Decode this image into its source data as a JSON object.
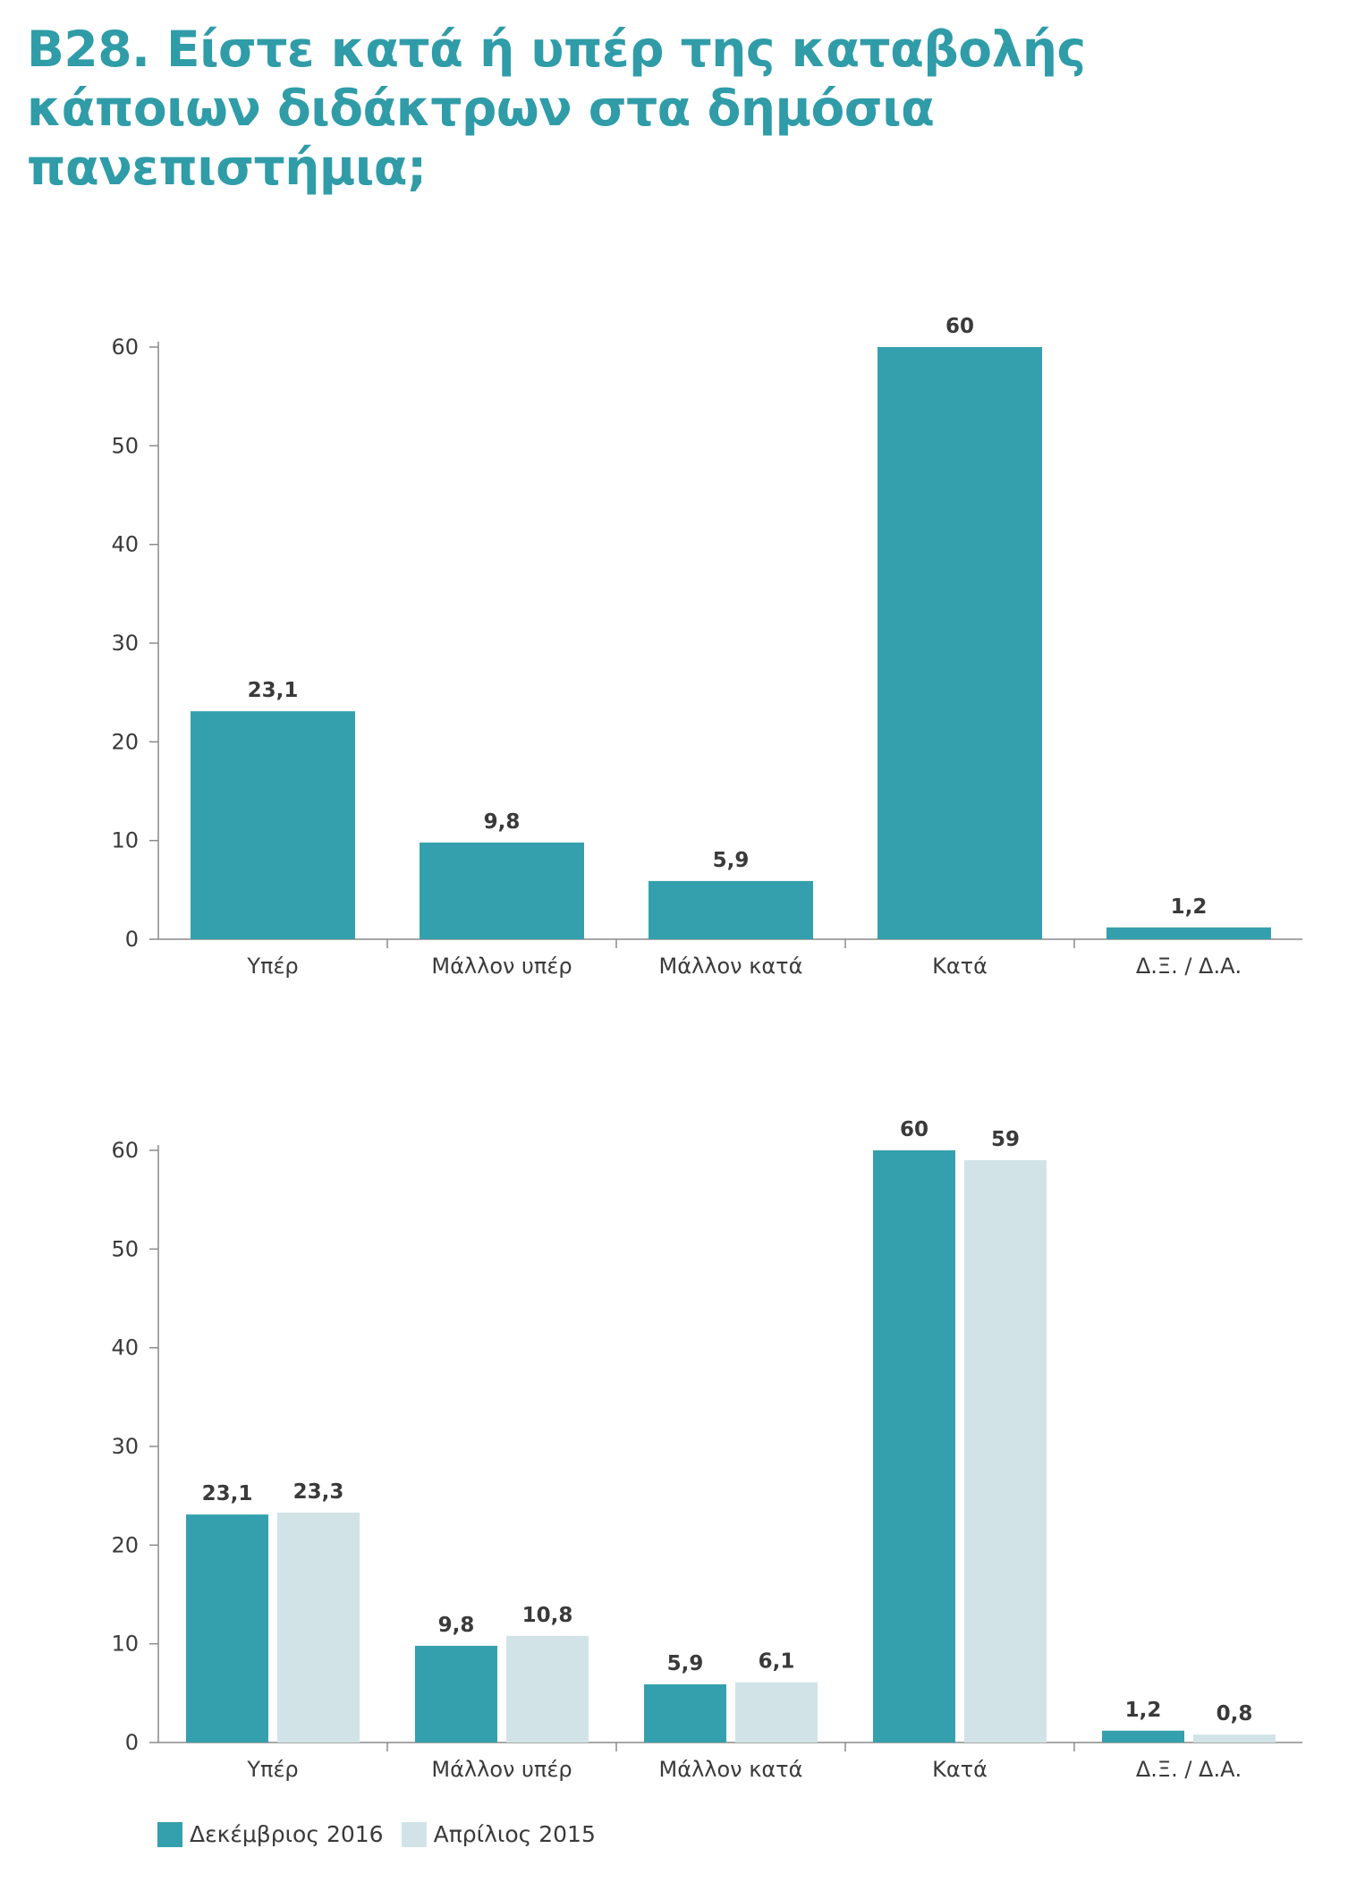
{
  "page": {
    "title_lines": [
      "B28. Είστε κατά ή υπέρ της καταβολής",
      "κάποιων διδάκτρων στα δημόσια",
      "πανεπιστήμια;"
    ]
  },
  "colors": {
    "title": "#2f9ca8",
    "series_dec_2016": "#35a0ad",
    "series_apr_2015": "#d1e3e6",
    "axis": "#8a8a8a",
    "text": "#3a3a3a"
  },
  "chart_data": [
    {
      "type": "bar",
      "categories": [
        "Υπέρ",
        "Μάλλον υπέρ",
        "Μάλλον κατά",
        "Κατά",
        "Δ.Ξ. / Δ.Α."
      ],
      "series": [
        {
          "values": [
            23.1,
            9.8,
            5.9,
            60,
            1.2
          ],
          "labels": [
            "23,1",
            "9,8",
            "5,9",
            "60",
            "1,2"
          ],
          "color": "#35a0ad"
        }
      ],
      "ylim": [
        0,
        60
      ],
      "yticks": [
        0,
        10,
        20,
        30,
        40,
        50,
        60
      ],
      "ytick_labels": [
        "0",
        "10",
        "20",
        "30",
        "40",
        "50",
        "60"
      ],
      "grid": false,
      "legend": "none"
    },
    {
      "type": "bar",
      "categories": [
        "Υπέρ",
        "Μάλλον υπέρ",
        "Μάλλον κατά",
        "Κατά",
        "Δ.Ξ. / Δ.Α."
      ],
      "series": [
        {
          "name": "Δεκέμβριος 2016",
          "values": [
            23.1,
            9.8,
            5.9,
            60,
            1.2
          ],
          "labels": [
            "23,1",
            "9,8",
            "5,9",
            "60",
            "1,2"
          ],
          "color": "#35a0ad"
        },
        {
          "name": "Απρίλιος 2015",
          "values": [
            23.3,
            10.8,
            6.1,
            59,
            0.8
          ],
          "labels": [
            "23,3",
            "10,8",
            "6,1",
            "59",
            "0,8"
          ],
          "color": "#d1e3e6"
        }
      ],
      "ylim": [
        0,
        60
      ],
      "yticks": [
        0,
        10,
        20,
        30,
        40,
        50,
        60
      ],
      "ytick_labels": [
        "0",
        "10",
        "20",
        "30",
        "40",
        "50",
        "60"
      ],
      "grid": false,
      "legend": "bottom-left"
    }
  ]
}
